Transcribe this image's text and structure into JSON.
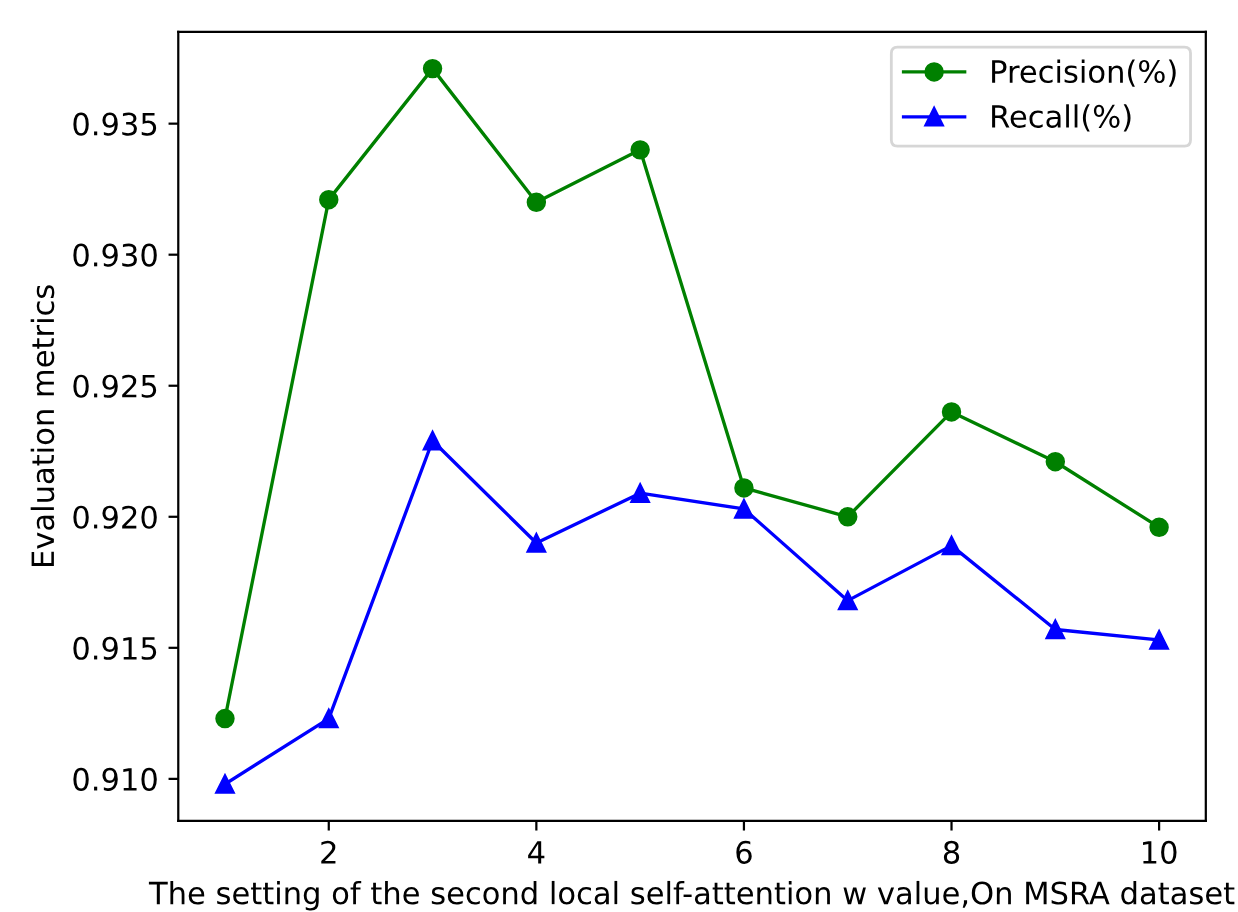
{
  "chart_data": {
    "type": "line",
    "xlabel": "The setting of the second local self-attention w value,On MSRA dataset",
    "ylabel": "Evaluation metrics",
    "x": [
      1,
      2,
      3,
      4,
      5,
      6,
      7,
      8,
      9,
      10
    ],
    "series": [
      {
        "name": "Precision(%)",
        "color": "#008000",
        "marker": "circle",
        "values": [
          0.9123,
          0.9321,
          0.9371,
          0.932,
          0.934,
          0.9211,
          0.92,
          0.924,
          0.9221,
          0.9196
        ]
      },
      {
        "name": "Recall(%)",
        "color": "#0000ff",
        "marker": "triangle",
        "values": [
          0.9098,
          0.9123,
          0.9229,
          0.919,
          0.9209,
          0.9203,
          0.9168,
          0.9189,
          0.9157,
          0.9153
        ]
      }
    ],
    "xlim": [
      0.55,
      10.45
    ],
    "xticks": [
      2,
      4,
      6,
      8,
      10
    ],
    "ylim": [
      0.9084,
      0.9385
    ],
    "yticks": [
      {
        "value": 0.91,
        "label": "0.910"
      },
      {
        "value": 0.915,
        "label": "0.915"
      },
      {
        "value": 0.92,
        "label": "0.920"
      },
      {
        "value": 0.925,
        "label": "0.925"
      },
      {
        "value": 0.93,
        "label": "0.930"
      },
      {
        "value": 0.935,
        "label": "0.935"
      }
    ],
    "legend": "top right",
    "grid": false,
    "line_style": "solid"
  }
}
